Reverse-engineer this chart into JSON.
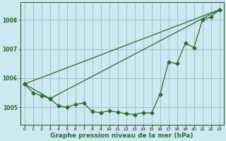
{
  "xlabel": "Graphe pression niveau de la mer (hPa)",
  "bg_color": "#cce8f0",
  "grid_color": "#99bbcc",
  "line_color": "#2d6a2d",
  "ylim": [
    1004.4,
    1008.6
  ],
  "yticks": [
    1005,
    1006,
    1007,
    1008
  ],
  "xticks": [
    0,
    1,
    2,
    3,
    4,
    5,
    6,
    7,
    8,
    9,
    10,
    11,
    12,
    13,
    14,
    15,
    16,
    17,
    18,
    19,
    20,
    21,
    22,
    23
  ],
  "line1_x": [
    0,
    1,
    2,
    3,
    4,
    5,
    6,
    7,
    8,
    9,
    10,
    11,
    12,
    13,
    14,
    15,
    16,
    17,
    18,
    19,
    20,
    21,
    22,
    23
  ],
  "line1_y": [
    1005.8,
    1005.5,
    1005.4,
    1005.3,
    1005.05,
    1005.0,
    1005.1,
    1005.15,
    1004.85,
    1004.82,
    1004.88,
    1004.83,
    1004.78,
    1004.75,
    1004.82,
    1004.8,
    1005.45,
    1006.55,
    1006.5,
    1007.2,
    1007.05,
    1008.0,
    1008.1,
    1008.35
  ],
  "line2_x": [
    0,
    23
  ],
  "line2_y": [
    1005.8,
    1008.35
  ],
  "line3_x": [
    0,
    3,
    23
  ],
  "line3_y": [
    1005.8,
    1005.3,
    1008.35
  ],
  "markersize": 2.5,
  "linewidth": 0.9,
  "xlabel_fontsize": 6.5,
  "ytick_fontsize": 5.5,
  "xtick_fontsize": 4.5
}
